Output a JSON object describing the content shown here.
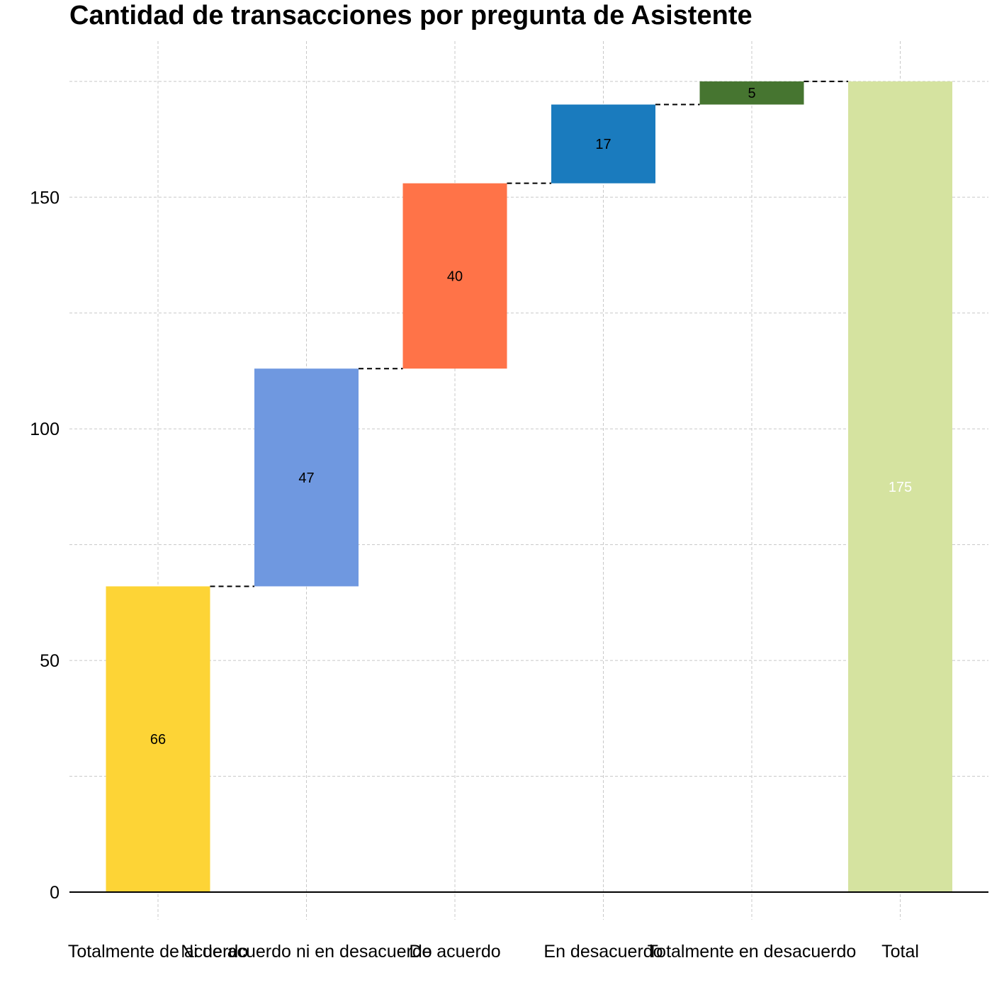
{
  "chart_data": {
    "type": "bar",
    "subtype": "waterfall",
    "title": "Cantidad de transacciones por pregunta de Asistente",
    "xlabel": "",
    "ylabel": "",
    "categories": [
      "Totalmente de acuerdo",
      "Ni de acuerdo ni en desacuerdo",
      "De acuerdo",
      "En desacuerdo",
      "Totalmente en desacuerdo",
      "Total"
    ],
    "values": [
      66,
      47,
      40,
      17,
      5,
      175
    ],
    "value_labels": [
      "66",
      "47",
      "40",
      "17",
      "5",
      "175"
    ],
    "colors": [
      "#FDD436",
      "#6F98E0",
      "#FF7348",
      "#1A7BBE",
      "#467530",
      "#D5E3A0"
    ],
    "label_colors": [
      "#000000",
      "#000000",
      "#000000",
      "#000000",
      "#000000",
      "#FFFFFF"
    ],
    "ylim": [
      -7,
      182
    ],
    "yticks": [
      0,
      50,
      100,
      150
    ],
    "grid": true,
    "legend": "none"
  }
}
